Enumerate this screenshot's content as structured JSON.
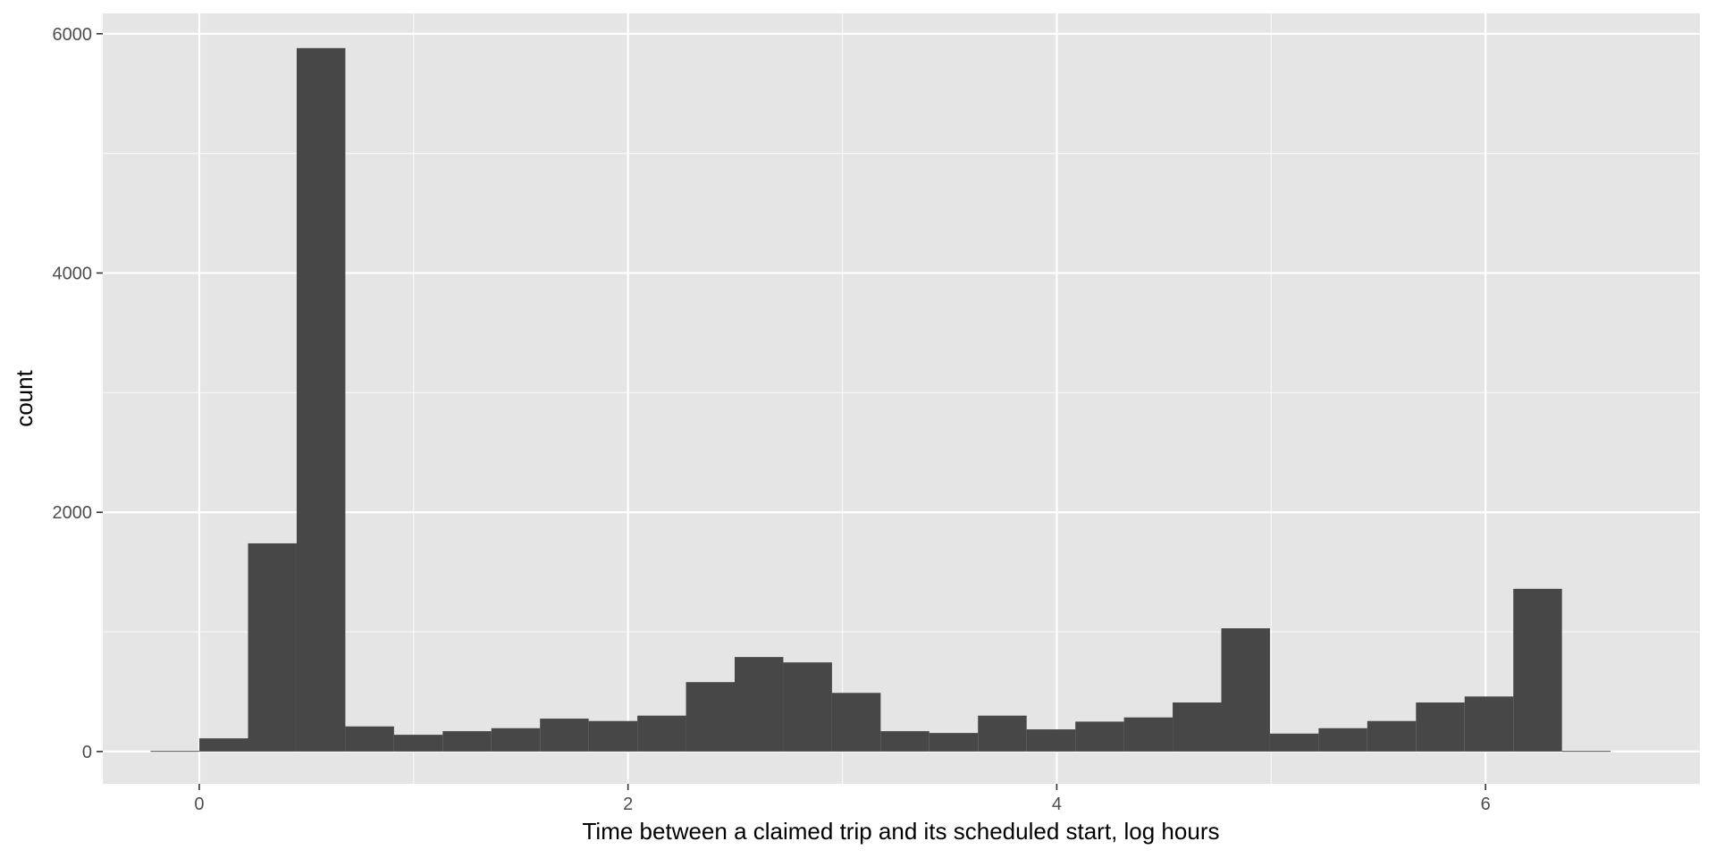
{
  "chart_data": {
    "type": "bar",
    "title": "",
    "xlabel": "Time between a claimed trip and its scheduled start, log hours",
    "ylabel": "count",
    "xlim": [
      -0.45,
      7.0
    ],
    "ylim": [
      -270,
      6170
    ],
    "x_ticks": [
      0,
      2,
      4,
      6
    ],
    "x_tick_labels": [
      "0",
      "2",
      "4",
      "6"
    ],
    "y_ticks": [
      0,
      2000,
      4000,
      6000
    ],
    "y_tick_labels": [
      "0",
      "2000",
      "4000",
      "6000"
    ],
    "grid": true,
    "bin_width": 0.227,
    "bins": [
      {
        "x": -0.114,
        "count": 5
      },
      {
        "x": 0.114,
        "count": 110
      },
      {
        "x": 0.341,
        "count": 1740
      },
      {
        "x": 0.568,
        "count": 5880
      },
      {
        "x": 0.795,
        "count": 210
      },
      {
        "x": 1.022,
        "count": 140
      },
      {
        "x": 1.249,
        "count": 170
      },
      {
        "x": 1.476,
        "count": 195
      },
      {
        "x": 1.703,
        "count": 275
      },
      {
        "x": 1.93,
        "count": 255
      },
      {
        "x": 2.157,
        "count": 300
      },
      {
        "x": 2.384,
        "count": 580
      },
      {
        "x": 2.611,
        "count": 790
      },
      {
        "x": 2.838,
        "count": 745
      },
      {
        "x": 3.065,
        "count": 490
      },
      {
        "x": 3.292,
        "count": 170
      },
      {
        "x": 3.519,
        "count": 155
      },
      {
        "x": 3.746,
        "count": 300
      },
      {
        "x": 3.973,
        "count": 185
      },
      {
        "x": 4.2,
        "count": 250
      },
      {
        "x": 4.427,
        "count": 285
      },
      {
        "x": 4.654,
        "count": 410
      },
      {
        "x": 4.881,
        "count": 1030
      },
      {
        "x": 5.108,
        "count": 150
      },
      {
        "x": 5.335,
        "count": 195
      },
      {
        "x": 5.562,
        "count": 255
      },
      {
        "x": 5.789,
        "count": 410
      },
      {
        "x": 6.016,
        "count": 460
      },
      {
        "x": 6.243,
        "count": 1360
      },
      {
        "x": 6.47,
        "count": 5
      }
    ],
    "colors": {
      "panel_background": "#e5e5e5",
      "grid_major": "#ffffff",
      "bar_fill": "#474747",
      "tick_text": "#4d4d4d",
      "axis_text": "#000000"
    }
  }
}
